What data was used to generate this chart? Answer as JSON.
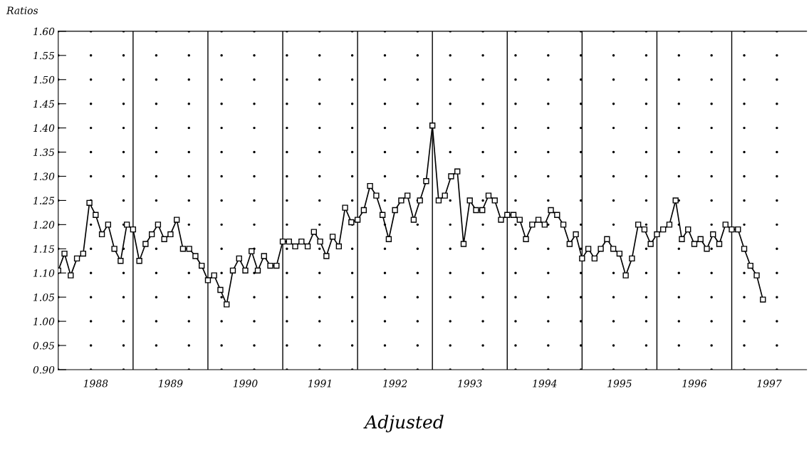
{
  "chart_data": {
    "type": "line",
    "title": "Adjusted",
    "ylabel": "Ratios",
    "x": [
      "1988-01",
      "1988-02",
      "1988-03",
      "1988-04",
      "1988-05",
      "1988-06",
      "1988-07",
      "1988-08",
      "1988-09",
      "1988-10",
      "1988-11",
      "1988-12",
      "1989-01",
      "1989-02",
      "1989-03",
      "1989-04",
      "1989-05",
      "1989-06",
      "1989-07",
      "1989-08",
      "1989-09",
      "1989-10",
      "1989-11",
      "1989-12",
      "1990-01",
      "1990-02",
      "1990-03",
      "1990-04",
      "1990-05",
      "1990-06",
      "1990-07",
      "1990-08",
      "1990-09",
      "1990-10",
      "1990-11",
      "1990-12",
      "1991-01",
      "1991-02",
      "1991-03",
      "1991-04",
      "1991-05",
      "1991-06",
      "1991-07",
      "1991-08",
      "1991-09",
      "1991-10",
      "1991-11",
      "1991-12",
      "1992-01",
      "1992-02",
      "1992-03",
      "1992-04",
      "1992-05",
      "1992-06",
      "1992-07",
      "1992-08",
      "1992-09",
      "1992-10",
      "1992-11",
      "1992-12",
      "1993-01",
      "1993-02",
      "1993-03",
      "1993-04",
      "1993-05",
      "1993-06",
      "1993-07",
      "1993-08",
      "1993-09",
      "1993-10",
      "1993-11",
      "1993-12",
      "1994-01",
      "1994-02",
      "1994-03",
      "1994-04",
      "1994-05",
      "1994-06",
      "1994-07",
      "1994-08",
      "1994-09",
      "1994-10",
      "1994-11",
      "1994-12",
      "1995-01",
      "1995-02",
      "1995-03",
      "1995-04",
      "1995-05",
      "1995-06",
      "1995-07",
      "1995-08",
      "1995-09",
      "1995-10",
      "1995-11",
      "1995-12",
      "1996-01",
      "1996-02",
      "1996-03",
      "1996-04",
      "1996-05",
      "1996-06",
      "1996-07",
      "1996-08",
      "1996-09",
      "1996-10",
      "1996-11",
      "1996-12",
      "1997-01",
      "1997-02",
      "1997-03",
      "1997-04",
      "1997-05",
      "1997-06"
    ],
    "series": [
      {
        "color": "#000000",
        "values": [
          1.105,
          1.14,
          1.095,
          1.13,
          1.14,
          1.245,
          1.22,
          1.18,
          1.2,
          1.15,
          1.125,
          1.2,
          1.19,
          1.125,
          1.16,
          1.18,
          1.2,
          1.17,
          1.18,
          1.21,
          1.15,
          1.15,
          1.135,
          1.115,
          1.085,
          1.095,
          1.065,
          1.035,
          1.105,
          1.13,
          1.105,
          1.145,
          1.105,
          1.135,
          1.115,
          1.115,
          1.165,
          1.165,
          1.155,
          1.165,
          1.155,
          1.185,
          1.165,
          1.135,
          1.175,
          1.155,
          1.235,
          1.205,
          1.21,
          1.23,
          1.28,
          1.26,
          1.22,
          1.17,
          1.23,
          1.25,
          1.26,
          1.21,
          1.25,
          1.29,
          1.405,
          1.25,
          1.26,
          1.3,
          1.31,
          1.16,
          1.25,
          1.23,
          1.23,
          1.26,
          1.25,
          1.21,
          1.22,
          1.22,
          1.21,
          1.17,
          1.2,
          1.21,
          1.2,
          1.23,
          1.22,
          1.2,
          1.16,
          1.18,
          1.13,
          1.15,
          1.13,
          1.15,
          1.17,
          1.15,
          1.14,
          1.095,
          1.13,
          1.2,
          1.19,
          1.16,
          1.18,
          1.19,
          1.2,
          1.25,
          1.17,
          1.19,
          1.16,
          1.17,
          1.15,
          1.18,
          1.16,
          1.2,
          1.19,
          1.19,
          1.15,
          1.115,
          1.095,
          1.045
        ]
      }
    ],
    "xlim": [
      "1988-01",
      "1998-01"
    ],
    "xticks": [
      {
        "value": "1988-07",
        "label": "1988"
      },
      {
        "value": "1989-01",
        "label": null
      },
      {
        "value": "1989-07",
        "label": "1989"
      },
      {
        "value": "1990-01",
        "label": null
      },
      {
        "value": "1990-07",
        "label": "1990"
      },
      {
        "value": "1991-01",
        "label": null
      },
      {
        "value": "1991-07",
        "label": "1991"
      },
      {
        "value": "1992-01",
        "label": null
      },
      {
        "value": "1992-07",
        "label": "1992"
      },
      {
        "value": "1993-01",
        "label": null
      },
      {
        "value": "1993-07",
        "label": "1993"
      },
      {
        "value": "1994-01",
        "label": null
      },
      {
        "value": "1994-07",
        "label": "1994"
      },
      {
        "value": "1995-01",
        "label": null
      },
      {
        "value": "1995-07",
        "label": "1995"
      },
      {
        "value": "1996-01",
        "label": null
      },
      {
        "value": "1996-07",
        "label": "1996"
      },
      {
        "value": "1997-01",
        "label": null
      },
      {
        "value": "1997-07",
        "label": "1997"
      }
    ],
    "ylim": [
      0.9,
      1.6
    ],
    "yticks": [
      {
        "value": 0.9,
        "label": "0.90"
      },
      {
        "value": 0.95,
        "label": "0.95"
      },
      {
        "value": 1.0,
        "label": "1.00"
      },
      {
        "value": 1.05,
        "label": "1.05"
      },
      {
        "value": 1.1,
        "label": "1.10"
      },
      {
        "value": 1.15,
        "label": "1.15"
      },
      {
        "value": 1.2,
        "label": "1.20"
      },
      {
        "value": 1.25,
        "label": "1.25"
      },
      {
        "value": 1.3,
        "label": "1.30"
      },
      {
        "value": 1.35,
        "label": "1.35"
      },
      {
        "value": 1.4,
        "label": "1.40"
      },
      {
        "value": 1.45,
        "label": "1.45"
      },
      {
        "value": 1.5,
        "label": "1.50"
      },
      {
        "value": 1.55,
        "label": "1.55"
      },
      {
        "value": 1.6,
        "label": "1.60"
      }
    ],
    "grid": true,
    "marker": "square",
    "line_style": "solid"
  }
}
